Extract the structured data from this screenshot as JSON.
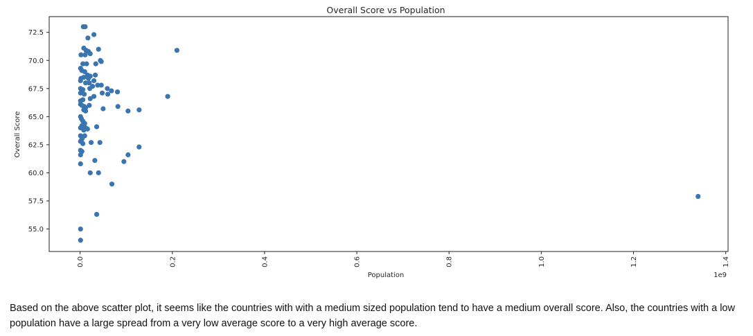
{
  "chart_data": {
    "type": "scatter",
    "title": "Overall Score vs Population",
    "xlabel": "Population",
    "ylabel": "Overall Score",
    "x_offset_label": "1e9",
    "xlim": [
      -0.067,
      1.405
    ],
    "ylim": [
      53.0,
      73.9
    ],
    "xticks": [
      0.0,
      0.2,
      0.4,
      0.6,
      0.8,
      1.0,
      1.2,
      1.4
    ],
    "xtick_labels": [
      "0.0",
      "0.2",
      "0.4",
      "0.6",
      "0.8",
      "1.0",
      "1.2",
      "1.4"
    ],
    "yticks": [
      55.0,
      57.5,
      60.0,
      62.5,
      65.0,
      67.5,
      70.0,
      72.5
    ],
    "ytick_labels": [
      "55.0",
      "57.5",
      "60.0",
      "62.5",
      "65.0",
      "67.5",
      "70.0",
      "72.5"
    ],
    "grid": false,
    "legend": "none",
    "marker_color": "#3a75b0",
    "series": [
      {
        "points": [
          [
            0.007,
            73.0
          ],
          [
            0.011,
            73.0
          ],
          [
            0.03,
            72.3
          ],
          [
            0.017,
            72.0
          ],
          [
            0.04,
            71.0
          ],
          [
            0.008,
            71.1
          ],
          [
            0.013,
            70.9
          ],
          [
            0.018,
            70.8
          ],
          [
            0.002,
            70.5
          ],
          [
            0.011,
            70.5
          ],
          [
            0.022,
            70.6
          ],
          [
            0.044,
            70.0
          ],
          [
            0.046,
            69.9
          ],
          [
            0.034,
            69.7
          ],
          [
            0.006,
            69.7
          ],
          [
            0.014,
            69.7
          ],
          [
            0.001,
            69.3
          ],
          [
            0.004,
            69.1
          ],
          [
            0.01,
            69.0
          ],
          [
            0.016,
            68.7
          ],
          [
            0.022,
            68.6
          ],
          [
            0.033,
            68.7
          ],
          [
            0.002,
            68.4
          ],
          [
            0.008,
            68.5
          ],
          [
            0.018,
            68.4
          ],
          [
            0.03,
            68.2
          ],
          [
            0.001,
            68.2
          ],
          [
            0.012,
            68.0
          ],
          [
            0.02,
            68.0
          ],
          [
            0.038,
            67.8
          ],
          [
            0.046,
            67.8
          ],
          [
            0.027,
            67.7
          ],
          [
            0.021,
            67.5
          ],
          [
            0.001,
            67.5
          ],
          [
            0.006,
            67.4
          ],
          [
            0.059,
            67.5
          ],
          [
            0.068,
            67.3
          ],
          [
            0.081,
            67.2
          ],
          [
            0.048,
            67.1
          ],
          [
            0.06,
            67.0
          ],
          [
            0.001,
            67.1
          ],
          [
            0.009,
            67.0
          ],
          [
            0.03,
            66.8
          ],
          [
            0.022,
            66.6
          ],
          [
            0.19,
            66.8
          ],
          [
            0.001,
            66.4
          ],
          [
            0.006,
            66.5
          ],
          [
            0.001,
            66.1
          ],
          [
            0.004,
            66.0
          ],
          [
            0.009,
            65.9
          ],
          [
            0.02,
            66.0
          ],
          [
            0.012,
            65.8
          ],
          [
            0.05,
            65.7
          ],
          [
            0.082,
            65.9
          ],
          [
            0.104,
            65.5
          ],
          [
            0.128,
            65.6
          ],
          [
            0.008,
            65.6
          ],
          [
            0.012,
            65.5
          ],
          [
            0.001,
            65.0
          ],
          [
            0.003,
            64.8
          ],
          [
            0.006,
            64.6
          ],
          [
            0.01,
            64.4
          ],
          [
            0.004,
            64.2
          ],
          [
            0.012,
            64.0
          ],
          [
            0.001,
            64.0
          ],
          [
            0.008,
            64.2
          ],
          [
            0.016,
            63.9
          ],
          [
            0.036,
            64.1
          ],
          [
            0.008,
            63.8
          ],
          [
            0.001,
            63.3
          ],
          [
            0.006,
            63.2
          ],
          [
            0.01,
            63.3
          ],
          [
            0.004,
            63.0
          ],
          [
            0.001,
            62.8
          ],
          [
            0.006,
            62.6
          ],
          [
            0.024,
            62.7
          ],
          [
            0.043,
            62.7
          ],
          [
            0.128,
            62.3
          ],
          [
            0.001,
            62.0
          ],
          [
            0.004,
            61.9
          ],
          [
            0.104,
            61.6
          ],
          [
            0.001,
            61.6
          ],
          [
            0.032,
            61.1
          ],
          [
            0.095,
            61.0
          ],
          [
            0.001,
            60.8
          ],
          [
            0.022,
            60.0
          ],
          [
            0.04,
            60.0
          ],
          [
            0.069,
            59.0
          ],
          [
            0.036,
            56.3
          ],
          [
            0.001,
            55.0
          ],
          [
            0.001,
            54.0
          ],
          [
            0.21,
            70.9
          ],
          [
            1.34,
            57.9
          ]
        ]
      }
    ]
  },
  "caption": "Based on the above scatter plot, it seems like the countries with with a medium sized population tend to have a medium overall score. Also, the countries with a low population have a large spread from a very low average score to a very high average score."
}
